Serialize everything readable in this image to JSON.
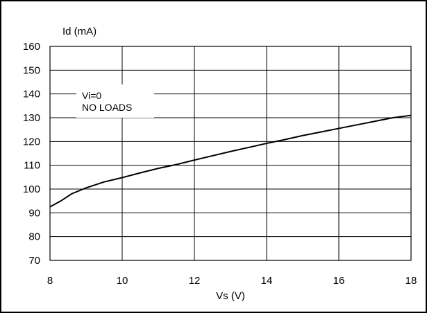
{
  "chart_data": {
    "type": "line",
    "title": "",
    "xlabel": "Vs (V)",
    "ylabel": "Id (mA)",
    "xlim": [
      8,
      18
    ],
    "ylim": [
      70,
      160
    ],
    "x_ticks": [
      "8",
      "10",
      "12",
      "14",
      "16",
      "18"
    ],
    "y_ticks": [
      "70",
      "80",
      "90",
      "100",
      "110",
      "120",
      "130",
      "140",
      "150",
      "160"
    ],
    "grid": true,
    "annotation": [
      "Vi=0",
      "NO LOADS"
    ],
    "series": [
      {
        "color": "#000000",
        "x": [
          8.0,
          8.3,
          8.6,
          9.0,
          9.5,
          10.0,
          10.5,
          11.0,
          11.5,
          12.0,
          12.5,
          13.0,
          13.5,
          14.0,
          14.5,
          15.0,
          15.5,
          16.0,
          16.5,
          17.0,
          17.5,
          18.0
        ],
        "y": [
          92.5,
          95.0,
          98.0,
          100.5,
          103.0,
          104.8,
          106.8,
          108.7,
          110.3,
          112.2,
          114.0,
          115.8,
          117.5,
          119.2,
          120.8,
          122.5,
          124.0,
          125.5,
          127.0,
          128.5,
          130.0,
          131.0
        ]
      }
    ]
  }
}
